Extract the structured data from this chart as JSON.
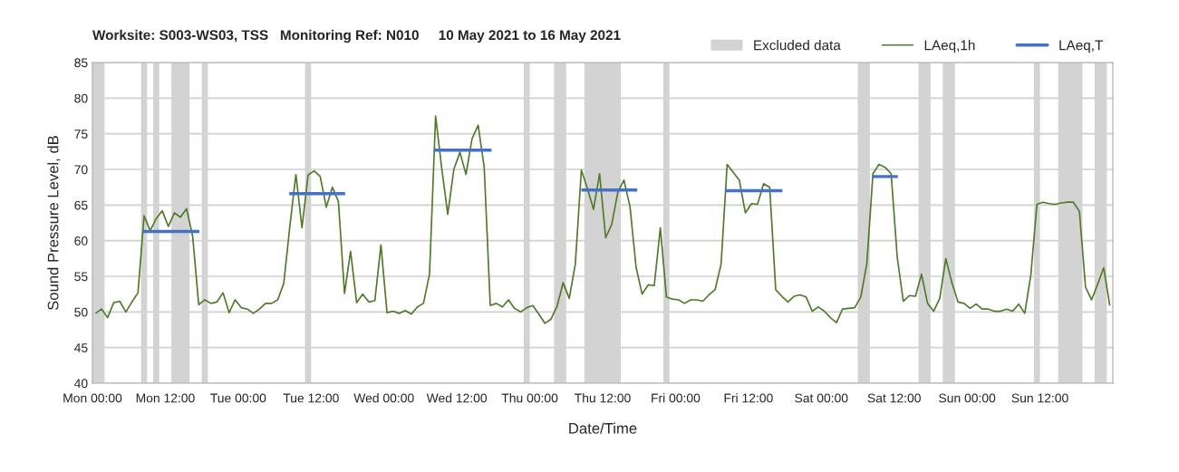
{
  "chart_data": {
    "type": "line",
    "title": "Worksite: S003-WS03, TSS   Monitoring Ref: N010     10 May 2021 to 16 May 2021",
    "xlabel": "Date/Time",
    "ylabel": "Sound Pressure Level, dB",
    "xlim": [
      "2021-05-10T00:00",
      "2021-05-17T00:00"
    ],
    "xticks": [
      {
        "value": "2021-05-10T00:00",
        "label": "Mon 00:00"
      },
      {
        "value": "2021-05-10T12:00",
        "label": "Mon 12:00"
      },
      {
        "value": "2021-05-11T00:00",
        "label": "Tue 00:00"
      },
      {
        "value": "2021-05-11T12:00",
        "label": "Tue 12:00"
      },
      {
        "value": "2021-05-12T00:00",
        "label": "Wed 00:00"
      },
      {
        "value": "2021-05-12T12:00",
        "label": "Wed 12:00"
      },
      {
        "value": "2021-05-13T00:00",
        "label": "Thu 00:00"
      },
      {
        "value": "2021-05-13T12:00",
        "label": "Thu 12:00"
      },
      {
        "value": "2021-05-14T00:00",
        "label": "Fri 00:00"
      },
      {
        "value": "2021-05-14T12:00",
        "label": "Fri 12:00"
      },
      {
        "value": "2021-05-15T00:00",
        "label": "Sat 00:00"
      },
      {
        "value": "2021-05-15T12:00",
        "label": "Sat 12:00"
      },
      {
        "value": "2021-05-16T00:00",
        "label": "Sun 00:00"
      },
      {
        "value": "2021-05-16T12:00",
        "label": "Sun 12:00"
      }
    ],
    "ylim": [
      40,
      85
    ],
    "yticks": [
      40,
      45,
      50,
      55,
      60,
      65,
      70,
      75,
      80,
      85
    ],
    "grid": "y",
    "legend": "top right",
    "series": [
      {
        "name": "LAeq,1h",
        "color": "#4e7a2a",
        "x": [
          "2021-05-10T00:30",
          "2021-05-10T01:30",
          "2021-05-10T02:30",
          "2021-05-10T03:30",
          "2021-05-10T04:30",
          "2021-05-10T05:30",
          "2021-05-10T06:30",
          "2021-05-10T07:30",
          "2021-05-10T08:30",
          "2021-05-10T09:30",
          "2021-05-10T10:30",
          "2021-05-10T11:30",
          "2021-05-10T12:30",
          "2021-05-10T13:30",
          "2021-05-10T14:30",
          "2021-05-10T15:30",
          "2021-05-10T16:30",
          "2021-05-10T17:30",
          "2021-05-10T18:30",
          "2021-05-10T19:30",
          "2021-05-10T20:30",
          "2021-05-10T21:30",
          "2021-05-10T22:30",
          "2021-05-10T23:30",
          "2021-05-11T00:30",
          "2021-05-11T01:30",
          "2021-05-11T02:30",
          "2021-05-11T03:30",
          "2021-05-11T04:30",
          "2021-05-11T05:30",
          "2021-05-11T06:30",
          "2021-05-11T07:30",
          "2021-05-11T08:30",
          "2021-05-11T09:30",
          "2021-05-11T10:30",
          "2021-05-11T11:30",
          "2021-05-11T12:30",
          "2021-05-11T13:30",
          "2021-05-11T14:30",
          "2021-05-11T15:30",
          "2021-05-11T16:30",
          "2021-05-11T17:30",
          "2021-05-11T18:30",
          "2021-05-11T19:30",
          "2021-05-11T20:30",
          "2021-05-11T21:30",
          "2021-05-11T22:30",
          "2021-05-11T23:30",
          "2021-05-12T00:30",
          "2021-05-12T01:30",
          "2021-05-12T02:30",
          "2021-05-12T03:30",
          "2021-05-12T04:30",
          "2021-05-12T05:30",
          "2021-05-12T06:30",
          "2021-05-12T07:30",
          "2021-05-12T08:30",
          "2021-05-12T09:30",
          "2021-05-12T10:30",
          "2021-05-12T11:30",
          "2021-05-12T12:30",
          "2021-05-12T13:30",
          "2021-05-12T14:30",
          "2021-05-12T15:30",
          "2021-05-12T16:30",
          "2021-05-12T17:30",
          "2021-05-12T18:30",
          "2021-05-12T19:30",
          "2021-05-12T20:30",
          "2021-05-12T21:30",
          "2021-05-12T22:30",
          "2021-05-12T23:30",
          "2021-05-13T00:30",
          "2021-05-13T01:30",
          "2021-05-13T02:30",
          "2021-05-13T03:30",
          "2021-05-13T04:30",
          "2021-05-13T05:30",
          "2021-05-13T06:30",
          "2021-05-13T07:30",
          "2021-05-13T08:30",
          "2021-05-13T09:30",
          "2021-05-13T10:30",
          "2021-05-13T11:30",
          "2021-05-13T12:30",
          "2021-05-13T13:30",
          "2021-05-13T14:30",
          "2021-05-13T15:30",
          "2021-05-13T16:30",
          "2021-05-13T17:30",
          "2021-05-13T18:30",
          "2021-05-13T19:30",
          "2021-05-13T20:30",
          "2021-05-13T21:30",
          "2021-05-13T22:30",
          "2021-05-13T23:30",
          "2021-05-14T00:30",
          "2021-05-14T01:30",
          "2021-05-14T02:30",
          "2021-05-14T03:30",
          "2021-05-14T04:30",
          "2021-05-14T05:30",
          "2021-05-14T06:30",
          "2021-05-14T07:30",
          "2021-05-14T08:30",
          "2021-05-14T09:30",
          "2021-05-14T10:30",
          "2021-05-14T11:30",
          "2021-05-14T12:30",
          "2021-05-14T13:30",
          "2021-05-14T14:30",
          "2021-05-14T15:30",
          "2021-05-14T16:30",
          "2021-05-14T17:30",
          "2021-05-14T18:30",
          "2021-05-14T19:30",
          "2021-05-14T20:30",
          "2021-05-14T21:30",
          "2021-05-14T22:30",
          "2021-05-14T23:30",
          "2021-05-15T00:30",
          "2021-05-15T01:30",
          "2021-05-15T02:30",
          "2021-05-15T03:30",
          "2021-05-15T04:30",
          "2021-05-15T05:30",
          "2021-05-15T06:30",
          "2021-05-15T07:30",
          "2021-05-15T08:30",
          "2021-05-15T09:30",
          "2021-05-15T10:30",
          "2021-05-15T11:30",
          "2021-05-15T12:30",
          "2021-05-15T13:30",
          "2021-05-15T14:30",
          "2021-05-15T15:30",
          "2021-05-15T16:30",
          "2021-05-15T17:30",
          "2021-05-15T18:30",
          "2021-05-15T19:30",
          "2021-05-15T20:30",
          "2021-05-15T21:30",
          "2021-05-15T22:30",
          "2021-05-15T23:30",
          "2021-05-16T00:30",
          "2021-05-16T01:30",
          "2021-05-16T02:30",
          "2021-05-16T03:30",
          "2021-05-16T04:30",
          "2021-05-16T05:30",
          "2021-05-16T06:30",
          "2021-05-16T07:30",
          "2021-05-16T08:30",
          "2021-05-16T09:30",
          "2021-05-16T10:30",
          "2021-05-16T11:30",
          "2021-05-16T12:30",
          "2021-05-16T13:30",
          "2021-05-16T14:30",
          "2021-05-16T15:30",
          "2021-05-16T16:30",
          "2021-05-16T17:30",
          "2021-05-16T18:30",
          "2021-05-16T19:30",
          "2021-05-16T20:30",
          "2021-05-16T21:30",
          "2021-05-16T22:30",
          "2021-05-16T23:30"
        ],
        "values": [
          49.8,
          50.4,
          49.2,
          51.3,
          51.5,
          50.0,
          51.4,
          52.7,
          63.5,
          61.4,
          63.1,
          64.2,
          62.0,
          63.9,
          63.3,
          64.5,
          60.6,
          51.0,
          51.7,
          51.2,
          51.4,
          52.7,
          49.9,
          51.7,
          50.6,
          50.4,
          49.8,
          50.4,
          51.2,
          51.2,
          51.7,
          54.0,
          62.0,
          69.3,
          61.8,
          69.2,
          69.8,
          69.0,
          64.7,
          67.5,
          65.5,
          52.6,
          58.5,
          51.3,
          52.5,
          51.4,
          51.6,
          59.4,
          49.9,
          50.1,
          49.8,
          50.2,
          49.7,
          50.7,
          51.2,
          55.3,
          77.5,
          70.2,
          63.7,
          70.0,
          72.4,
          69.3,
          74.3,
          76.2,
          70.3,
          50.9,
          51.2,
          50.7,
          51.7,
          50.5,
          50.0,
          50.6,
          50.9,
          49.7,
          48.4,
          49.0,
          50.8,
          54.1,
          51.9,
          56.7,
          69.9,
          67.3,
          64.4,
          69.4,
          60.4,
          62.3,
          66.8,
          68.5,
          64.8,
          56.3,
          52.5,
          53.8,
          53.7,
          61.8,
          52.1,
          51.8,
          51.7,
          51.2,
          51.7,
          51.7,
          51.5,
          52.4,
          53.1,
          56.7,
          70.7,
          69.6,
          68.5,
          63.9,
          65.2,
          65.1,
          68.0,
          67.5,
          53.1,
          52.2,
          51.4,
          52.2,
          52.4,
          52.1,
          50.1,
          50.7,
          50.1,
          49.2,
          48.5,
          50.4,
          50.5,
          50.6,
          52.1,
          56.8,
          69.4,
          70.7,
          70.3,
          69.4,
          57.7,
          51.5,
          52.3,
          52.2,
          55.3,
          51.2,
          50.1,
          51.9,
          57.5,
          54.1,
          51.4,
          51.2,
          50.5,
          51.1,
          50.4,
          50.4,
          50.1,
          50.1,
          50.4,
          50.1,
          51.1,
          49.8,
          55.2,
          65.1,
          65.4,
          65.2,
          65.1,
          65.3,
          65.4,
          65.4,
          64.1,
          53.5,
          51.7,
          53.9,
          56.2,
          50.9
        ]
      },
      {
        "name": "LAeq,T",
        "color": "#4472c4",
        "x": [
          "2021-05-10T08:18",
          "2021-05-10T17:36",
          "2021-05-11T01:00",
          "2021-05-11T08:24",
          "2021-05-11T17:36",
          "2021-05-12T01:00",
          "2021-05-12T08:12",
          "2021-05-12T17:42",
          "2021-05-13T01:00",
          "2021-05-13T08:30",
          "2021-05-13T17:42",
          "2021-05-14T01:00",
          "2021-05-14T08:12",
          "2021-05-14T17:36",
          "2021-05-15T01:00",
          "2021-05-15T08:24",
          "2021-05-15T12:36"
        ],
        "values": [
          61.3,
          61.3,
          null,
          66.6,
          66.6,
          null,
          72.7,
          72.7,
          null,
          67.1,
          67.1,
          null,
          67.0,
          67.0,
          null,
          69.0,
          69.0
        ]
      }
    ],
    "bands": [
      {
        "axis": "x",
        "from": "2021-05-10T00:00",
        "to": "2021-05-10T02:00",
        "label": "Excluded data",
        "color": "#d3d3d3"
      },
      {
        "axis": "x",
        "from": "2021-05-10T08:00",
        "to": "2021-05-10T09:00",
        "color": "#d3d3d3"
      },
      {
        "axis": "x",
        "from": "2021-05-10T10:00",
        "to": "2021-05-10T11:00",
        "color": "#d3d3d3"
      },
      {
        "axis": "x",
        "from": "2021-05-10T13:00",
        "to": "2021-05-10T16:00",
        "color": "#d3d3d3"
      },
      {
        "axis": "x",
        "from": "2021-05-10T18:00",
        "to": "2021-05-10T19:00",
        "color": "#d3d3d3"
      },
      {
        "axis": "x",
        "from": "2021-05-11T11:00",
        "to": "2021-05-11T12:00",
        "color": "#d3d3d3"
      },
      {
        "axis": "x",
        "from": "2021-05-12T23:00",
        "to": "2021-05-13T00:00",
        "color": "#d3d3d3"
      },
      {
        "axis": "x",
        "from": "2021-05-13T04:00",
        "to": "2021-05-13T06:00",
        "color": "#d3d3d3"
      },
      {
        "axis": "x",
        "from": "2021-05-13T09:00",
        "to": "2021-05-13T15:00",
        "color": "#d3d3d3"
      },
      {
        "axis": "x",
        "from": "2021-05-13T22:00",
        "to": "2021-05-13T23:00",
        "color": "#d3d3d3"
      },
      {
        "axis": "x",
        "from": "2021-05-15T06:00",
        "to": "2021-05-15T08:00",
        "color": "#d3d3d3"
      },
      {
        "axis": "x",
        "from": "2021-05-15T16:00",
        "to": "2021-05-15T18:00",
        "color": "#d3d3d3"
      },
      {
        "axis": "x",
        "from": "2021-05-15T20:00",
        "to": "2021-05-15T22:00",
        "color": "#d3d3d3"
      },
      {
        "axis": "x",
        "from": "2021-05-16T11:00",
        "to": "2021-05-16T12:00",
        "color": "#d3d3d3"
      },
      {
        "axis": "x",
        "from": "2021-05-16T15:00",
        "to": "2021-05-16T19:00",
        "color": "#d3d3d3"
      },
      {
        "axis": "x",
        "from": "2021-05-16T21:00",
        "to": "2021-05-16T23:00",
        "color": "#d3d3d3"
      }
    ]
  }
}
